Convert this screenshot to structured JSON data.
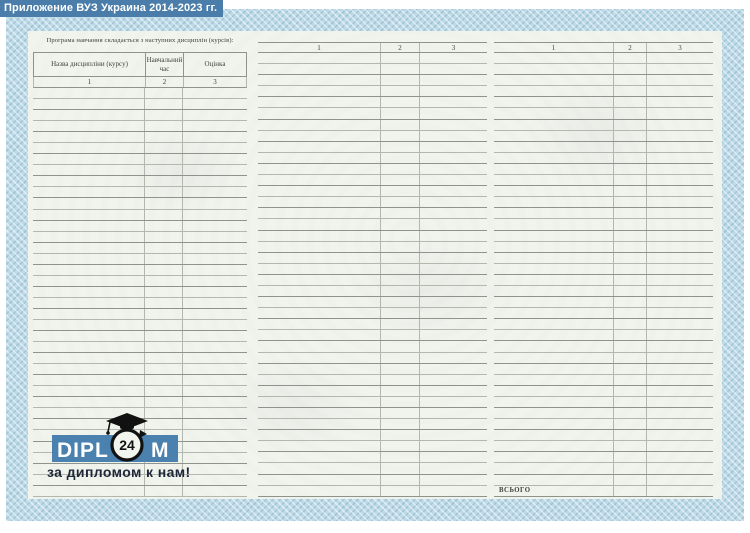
{
  "banner": {
    "title": "Приложение ВУЗ Украина 2014-2023 гг."
  },
  "document": {
    "left_table": {
      "caption": "Програма навчання складається з наступних дисциплін (курсів):",
      "headers": [
        "Назва дисципліни (курсу)",
        "Навчальний час",
        "Оцінка"
      ],
      "column_numbers": [
        "1",
        "2",
        "3"
      ],
      "blank_rows": 37
    },
    "middle_table": {
      "column_numbers": [
        "1",
        "2",
        "3"
      ],
      "blank_rows": 40
    },
    "right_table": {
      "column_numbers": [
        "1",
        "2",
        "3"
      ],
      "blank_rows": 39,
      "total_label": "ВСЬОГО"
    }
  },
  "watermark_logo": {
    "brand_prefix": "DIPL",
    "brand_suffix": "M",
    "clock_number": "24",
    "tagline": "за дипломом к нам!"
  },
  "colors": {
    "banner_bg": "#4a7da9",
    "border_blue": "#bedae7",
    "paper": "#f1f3ed",
    "line_soft": "#b3b8ae",
    "line_strong": "#8d948b",
    "ink": "#3b423b",
    "logo_blue": "#4a81ae",
    "tagline_ink": "#1d2737"
  }
}
